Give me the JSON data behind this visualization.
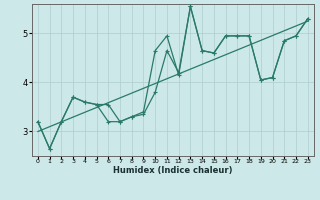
{
  "xlabel": "Humidex (Indice chaleur)",
  "xlim": [
    -0.5,
    23.5
  ],
  "ylim": [
    2.5,
    5.6
  ],
  "yticks": [
    3,
    4,
    5
  ],
  "xticks": [
    0,
    1,
    2,
    3,
    4,
    5,
    6,
    7,
    8,
    9,
    10,
    11,
    12,
    13,
    14,
    15,
    16,
    17,
    18,
    19,
    20,
    21,
    22,
    23
  ],
  "bg_color": "#cde8e8",
  "grid_color": "#aecece",
  "line_color": "#2a7a6a",
  "jagged_x": [
    0,
    1,
    2,
    3,
    4,
    5,
    6,
    7,
    8,
    9,
    10,
    11,
    12,
    13,
    14,
    15,
    16,
    17,
    18,
    19,
    20,
    21,
    22,
    23
  ],
  "jagged_y": [
    3.2,
    2.65,
    3.2,
    3.7,
    3.6,
    3.55,
    3.2,
    3.2,
    3.3,
    3.35,
    3.8,
    4.65,
    4.2,
    5.55,
    4.65,
    4.6,
    4.95,
    4.95,
    4.95,
    4.05,
    4.1,
    4.85,
    4.95,
    5.3
  ],
  "upper_x": [
    0,
    1,
    2,
    3,
    4,
    5,
    6,
    7,
    8,
    9,
    10,
    11,
    12,
    13,
    14,
    15,
    16,
    17,
    18,
    19,
    20,
    21,
    22,
    23
  ],
  "upper_y": [
    3.2,
    2.65,
    3.2,
    3.7,
    3.6,
    3.55,
    3.55,
    3.2,
    3.3,
    3.4,
    4.65,
    4.95,
    4.15,
    5.55,
    4.65,
    4.6,
    4.95,
    4.95,
    4.95,
    4.05,
    4.1,
    4.85,
    4.95,
    5.3
  ],
  "trend_x": [
    0,
    23
  ],
  "trend_y": [
    3.0,
    5.25
  ]
}
